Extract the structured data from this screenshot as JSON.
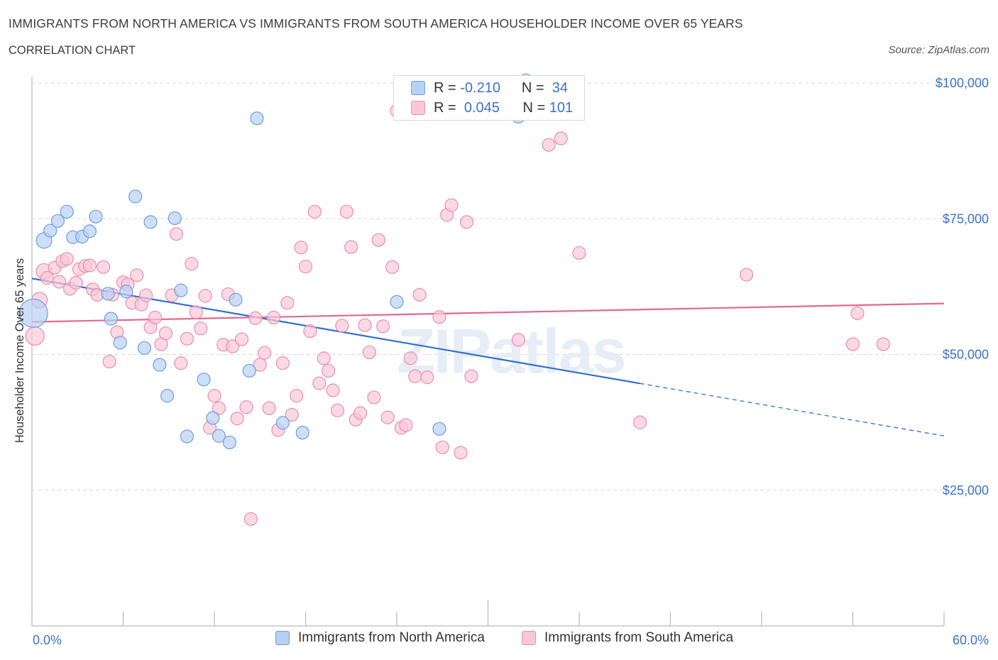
{
  "header": {
    "title": "IMMIGRANTS FROM NORTH AMERICA VS IMMIGRANTS FROM SOUTH AMERICA HOUSEHOLDER INCOME OVER 65 YEARS",
    "subtitle": "CORRELATION CHART",
    "source": "Source: ZipAtlas.com"
  },
  "watermark": "ZIPatlas",
  "legend_top": {
    "rows": [
      {
        "r_label": "R =",
        "r_value": "-0.210",
        "n_label": "N =",
        "n_value": "34"
      },
      {
        "r_label": "R =",
        "r_value": "0.045",
        "n_label": "N =",
        "n_value": "101"
      }
    ]
  },
  "legend_bottom": {
    "items": [
      "Immigrants from North America",
      "Immigrants from South America"
    ]
  },
  "colors": {
    "blue_fill": "#b8d0f4",
    "blue_stroke": "#6f9ee0",
    "blue_line": "#2f6fd1",
    "pink_fill": "#f8c8d8",
    "pink_stroke": "#eb8eac",
    "pink_line": "#e46792",
    "axis_text": "#3b73c9",
    "grid": "#d8d8d8"
  },
  "chart_data": {
    "type": "scatter",
    "title": "IMMIGRANTS FROM NORTH AMERICA VS IMMIGRANTS FROM SOUTH AMERICA HOUSEHOLDER INCOME OVER 65 YEARS",
    "xlabel": "",
    "ylabel": "Householder Income Over 65 years",
    "xlim": [
      0,
      60
    ],
    "ylim": [
      0,
      100000
    ],
    "x_tick_labels": [
      "0.0%",
      "60.0%"
    ],
    "y_ticks": [
      25000,
      50000,
      75000,
      100000
    ],
    "y_tick_labels": [
      "$25,000",
      "$50,000",
      "$75,000",
      "$100,000"
    ],
    "grid": true,
    "legend_position": "bottom",
    "series": [
      {
        "name": "Immigrants from North America",
        "color": "#6f9ee0",
        "trend": {
          "x0": 0,
          "y0": 64000,
          "x1": 60,
          "y1": 35000,
          "solid_until_x": 40
        },
        "points": [
          [
            0.1,
            57600,
            20
          ],
          [
            0.8,
            71000,
            11
          ],
          [
            1.2,
            72800,
            9
          ],
          [
            1.7,
            74600,
            9
          ],
          [
            2.3,
            76300,
            9
          ],
          [
            2.7,
            71600,
            9
          ],
          [
            3.3,
            71700,
            9
          ],
          [
            3.8,
            72700,
            9
          ],
          [
            4.2,
            75400,
            9
          ],
          [
            5.0,
            61200,
            9
          ],
          [
            5.2,
            56600,
            9
          ],
          [
            5.8,
            52200,
            9
          ],
          [
            6.2,
            61600,
            9
          ],
          [
            6.8,
            79100,
            9
          ],
          [
            7.4,
            51200,
            9
          ],
          [
            7.8,
            74400,
            9
          ],
          [
            8.4,
            48100,
            9
          ],
          [
            8.9,
            42400,
            9
          ],
          [
            9.4,
            75100,
            9
          ],
          [
            9.8,
            61800,
            9
          ],
          [
            10.2,
            34900,
            9
          ],
          [
            11.3,
            45400,
            9
          ],
          [
            11.9,
            38300,
            9
          ],
          [
            12.3,
            35000,
            9
          ],
          [
            13.0,
            33800,
            9
          ],
          [
            13.4,
            60100,
            9
          ],
          [
            14.3,
            47000,
            9
          ],
          [
            14.8,
            93500,
            9
          ],
          [
            16.5,
            37400,
            9
          ],
          [
            17.8,
            35600,
            9
          ],
          [
            24.0,
            59700,
            9
          ],
          [
            26.8,
            36300,
            9
          ],
          [
            32.0,
            93800,
            9
          ],
          [
            32.5,
            100500,
            9
          ]
        ]
      },
      {
        "name": "Immigrants from South America",
        "color": "#eb8eac",
        "trend": {
          "x0": 0,
          "y0": 56000,
          "x1": 60,
          "y1": 59400,
          "solid_until_x": 60
        },
        "points": [
          [
            0.2,
            53400,
            13
          ],
          [
            0.5,
            60000,
            11
          ],
          [
            0.8,
            65300,
            11
          ],
          [
            1.0,
            64100,
            9
          ],
          [
            1.5,
            66000,
            9
          ],
          [
            1.8,
            63400,
            9
          ],
          [
            2.0,
            67200,
            9
          ],
          [
            2.3,
            67600,
            9
          ],
          [
            2.5,
            62100,
            9
          ],
          [
            2.9,
            63200,
            9
          ],
          [
            3.1,
            65700,
            9
          ],
          [
            3.5,
            66300,
            9
          ],
          [
            3.8,
            66400,
            9
          ],
          [
            4.0,
            62000,
            9
          ],
          [
            4.3,
            61000,
            9
          ],
          [
            4.7,
            66100,
            9
          ],
          [
            5.1,
            48700,
            9
          ],
          [
            5.3,
            61000,
            9
          ],
          [
            5.6,
            54100,
            9
          ],
          [
            6.0,
            63300,
            9
          ],
          [
            6.3,
            62900,
            9
          ],
          [
            6.6,
            59500,
            9
          ],
          [
            6.9,
            64600,
            9
          ],
          [
            7.2,
            59200,
            9
          ],
          [
            7.5,
            60900,
            9
          ],
          [
            7.8,
            55000,
            9
          ],
          [
            8.1,
            56800,
            9
          ],
          [
            8.5,
            51900,
            9
          ],
          [
            8.8,
            53900,
            9
          ],
          [
            9.2,
            60900,
            9
          ],
          [
            9.5,
            72200,
            9
          ],
          [
            9.8,
            48400,
            9
          ],
          [
            10.2,
            52900,
            9
          ],
          [
            10.5,
            66700,
            9
          ],
          [
            10.8,
            57800,
            9
          ],
          [
            11.1,
            54800,
            9
          ],
          [
            11.4,
            60800,
            9
          ],
          [
            11.7,
            36500,
            9
          ],
          [
            12.0,
            42400,
            9
          ],
          [
            12.3,
            40100,
            9
          ],
          [
            12.6,
            51800,
            9
          ],
          [
            12.9,
            61100,
            9
          ],
          [
            13.2,
            51500,
            9
          ],
          [
            13.5,
            38200,
            9
          ],
          [
            13.8,
            52800,
            9
          ],
          [
            14.1,
            40300,
            9
          ],
          [
            14.4,
            19700,
            9
          ],
          [
            14.7,
            56700,
            9
          ],
          [
            15.0,
            48100,
            9
          ],
          [
            15.3,
            50300,
            9
          ],
          [
            15.6,
            40100,
            9
          ],
          [
            15.9,
            56800,
            9
          ],
          [
            16.2,
            36100,
            9
          ],
          [
            16.5,
            48400,
            9
          ],
          [
            16.8,
            59500,
            9
          ],
          [
            17.1,
            38900,
            9
          ],
          [
            17.4,
            42400,
            9
          ],
          [
            17.7,
            69700,
            9
          ],
          [
            18.0,
            66200,
            9
          ],
          [
            18.3,
            54300,
            9
          ],
          [
            18.6,
            76300,
            9
          ],
          [
            18.9,
            44700,
            9
          ],
          [
            19.2,
            49300,
            9
          ],
          [
            19.5,
            47000,
            9
          ],
          [
            19.8,
            43400,
            9
          ],
          [
            20.1,
            39700,
            9
          ],
          [
            20.4,
            55300,
            9
          ],
          [
            20.7,
            76300,
            9
          ],
          [
            21.0,
            69800,
            9
          ],
          [
            21.3,
            38000,
            9
          ],
          [
            21.6,
            39200,
            9
          ],
          [
            21.9,
            55400,
            9
          ],
          [
            22.2,
            50400,
            9
          ],
          [
            22.5,
            42100,
            9
          ],
          [
            22.8,
            71100,
            9
          ],
          [
            23.1,
            55200,
            9
          ],
          [
            23.4,
            38400,
            9
          ],
          [
            23.7,
            66100,
            9
          ],
          [
            24.0,
            94900,
            9
          ],
          [
            24.3,
            36500,
            9
          ],
          [
            24.6,
            37000,
            9
          ],
          [
            24.9,
            49300,
            9
          ],
          [
            25.2,
            46000,
            9
          ],
          [
            26.8,
            56900,
            9
          ],
          [
            27.0,
            32900,
            9
          ],
          [
            27.3,
            75700,
            9
          ],
          [
            27.6,
            77500,
            9
          ],
          [
            28.2,
            31900,
            9
          ],
          [
            28.6,
            74400,
            9
          ],
          [
            28.9,
            46000,
            9
          ],
          [
            32.0,
            52700,
            9
          ],
          [
            34.0,
            88600,
            9
          ],
          [
            34.8,
            89800,
            9
          ],
          [
            36.0,
            68700,
            9
          ],
          [
            40.0,
            37500,
            9
          ],
          [
            47.0,
            64700,
            9
          ],
          [
            54.0,
            51900,
            9
          ],
          [
            54.3,
            57600,
            9
          ],
          [
            56.0,
            51900,
            9
          ],
          [
            25.5,
            61000,
            9
          ],
          [
            26.0,
            45800,
            9
          ]
        ]
      }
    ]
  }
}
